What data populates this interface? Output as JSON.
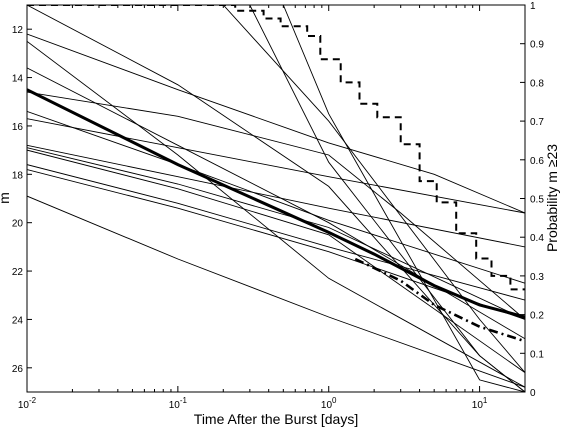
{
  "chart_data": {
    "type": "line",
    "x_scale": "log",
    "xlabel": "Time After the Burst [days]",
    "ylabel_left": "m",
    "ylabel_right": "Probability m ≥23",
    "xlim": [
      0.01,
      20
    ],
    "ylim_left": [
      27,
      11
    ],
    "ylim_right": [
      0,
      1
    ],
    "left_ticks": [
      "12",
      "14",
      "16",
      "18",
      "20",
      "22",
      "24",
      "26"
    ],
    "left_tick_values": [
      12,
      14,
      16,
      18,
      20,
      22,
      24,
      26
    ],
    "right_ticks": [
      "0",
      "0.1",
      "0.2",
      "0.3",
      "0.4",
      "0.5",
      "0.6",
      "0.7",
      "0.8",
      "0.9",
      "1"
    ],
    "right_tick_values": [
      0,
      0.1,
      0.2,
      0.3,
      0.4,
      0.5,
      0.6,
      0.7,
      0.8,
      0.9,
      1
    ],
    "x_ticks": [
      {
        "base": "10",
        "exp": "-2",
        "value": 0.01
      },
      {
        "base": "10",
        "exp": "-1",
        "value": 0.1
      },
      {
        "base": "10",
        "exp": "0",
        "value": 1
      },
      {
        "base": "10",
        "exp": "1",
        "value": 10
      }
    ],
    "afterglow_lines": [
      [
        [
          0.01,
          12.2
        ],
        [
          0.1,
          14.5
        ],
        [
          1,
          16.7
        ],
        [
          5,
          18.0
        ],
        [
          20,
          19.6
        ]
      ],
      [
        [
          0.01,
          12.5
        ],
        [
          0.1,
          17.2
        ],
        [
          1,
          22.3
        ],
        [
          20,
          26.8
        ]
      ],
      [
        [
          0.01,
          13.6
        ],
        [
          0.1,
          16.8
        ],
        [
          1,
          20.0
        ],
        [
          20,
          24.8
        ]
      ],
      [
        [
          0.01,
          14.6
        ],
        [
          0.1,
          15.6
        ],
        [
          1,
          17.2
        ],
        [
          3,
          19.6
        ],
        [
          20,
          24.0
        ]
      ],
      [
        [
          0.01,
          15.4
        ],
        [
          0.1,
          17.6
        ],
        [
          1,
          19.9
        ],
        [
          20,
          22.5
        ]
      ],
      [
        [
          0.01,
          15.7
        ],
        [
          0.1,
          16.9
        ],
        [
          1,
          18.1
        ],
        [
          20,
          19.6
        ]
      ],
      [
        [
          0.01,
          16.8
        ],
        [
          0.1,
          18.1
        ],
        [
          1,
          19.4
        ],
        [
          20,
          21.0
        ]
      ],
      [
        [
          0.01,
          16.9
        ],
        [
          0.1,
          18.4
        ],
        [
          1,
          20.2
        ],
        [
          20,
          24.0
        ]
      ],
      [
        [
          0.01,
          17.0
        ],
        [
          0.1,
          18.6
        ],
        [
          1,
          20.5
        ],
        [
          20,
          26.2
        ]
      ],
      [
        [
          0.01,
          17.6
        ],
        [
          0.1,
          19.2
        ],
        [
          1,
          21.0
        ],
        [
          20,
          23.2
        ]
      ],
      [
        [
          0.01,
          17.8
        ],
        [
          0.1,
          19.4
        ],
        [
          1,
          21.2
        ],
        [
          20,
          24.0
        ]
      ],
      [
        [
          0.01,
          18.9
        ],
        [
          0.1,
          21.5
        ],
        [
          1,
          23.9
        ],
        [
          20,
          26.8
        ]
      ],
      [
        [
          0.2,
          11.0
        ],
        [
          1,
          15.8
        ],
        [
          10,
          24.0
        ],
        [
          20,
          26.2
        ]
      ],
      [
        [
          0.3,
          11.0
        ],
        [
          1,
          17.5
        ],
        [
          10,
          25.5
        ],
        [
          20,
          27.0
        ]
      ],
      [
        [
          0.5,
          11.0
        ],
        [
          1,
          15.5
        ],
        [
          10,
          26.5
        ],
        [
          20,
          27.0
        ]
      ],
      [
        [
          0.01,
          11.0
        ],
        [
          0.1,
          14.3
        ],
        [
          1,
          18.5
        ],
        [
          10,
          25.5
        ],
        [
          20,
          27.0
        ]
      ]
    ],
    "mean_line": [
      [
        0.01,
        14.5
      ],
      [
        0.1,
        17.6
      ],
      [
        1,
        20.4
      ],
      [
        2,
        21.3
      ],
      [
        5,
        22.6
      ],
      [
        10,
        23.4
      ],
      [
        20,
        23.9
      ]
    ],
    "mean_line_extension": [
      [
        1.5,
        21.5
      ],
      [
        3,
        22.4
      ],
      [
        5,
        23.4
      ],
      [
        10,
        24.3
      ],
      [
        20,
        24.9
      ]
    ],
    "probability_step": [
      [
        0.01,
        1.0
      ],
      [
        0.24,
        1.0
      ],
      [
        0.24,
        0.985
      ],
      [
        0.37,
        0.985
      ],
      [
        0.37,
        0.965
      ],
      [
        0.48,
        0.965
      ],
      [
        0.48,
        0.945
      ],
      [
        0.72,
        0.945
      ],
      [
        0.72,
        0.92
      ],
      [
        0.88,
        0.92
      ],
      [
        0.88,
        0.86
      ],
      [
        1.2,
        0.86
      ],
      [
        1.2,
        0.8
      ],
      [
        1.6,
        0.8
      ],
      [
        1.6,
        0.745
      ],
      [
        2.1,
        0.745
      ],
      [
        2.1,
        0.71
      ],
      [
        3.0,
        0.71
      ],
      [
        3.0,
        0.64
      ],
      [
        4.0,
        0.64
      ],
      [
        4.0,
        0.545
      ],
      [
        5.2,
        0.545
      ],
      [
        5.2,
        0.49
      ],
      [
        7.0,
        0.49
      ],
      [
        7.0,
        0.41
      ],
      [
        9.5,
        0.41
      ],
      [
        9.5,
        0.345
      ],
      [
        12.0,
        0.345
      ],
      [
        12.0,
        0.3
      ],
      [
        16.0,
        0.3
      ],
      [
        16.0,
        0.265
      ],
      [
        20,
        0.265
      ]
    ]
  }
}
